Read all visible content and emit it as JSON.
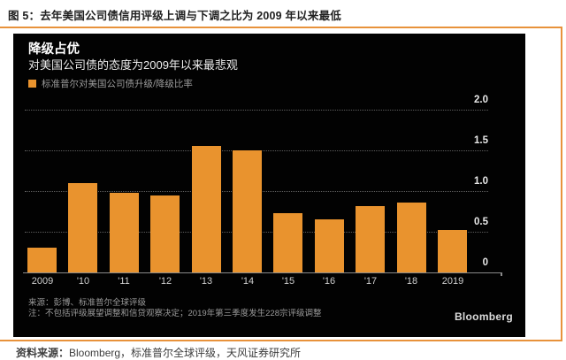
{
  "figure": {
    "title": "图 5：去年美国公司债信用评级上调与下调之比为 2009 年以来最低"
  },
  "chart": {
    "title": "降级占优",
    "subtitle": "对美国公司债的态度为2009年以来最悲观",
    "legend": "标准普尔对美国公司债升级/降级比率",
    "source_note": "来源：彭博、标准普尔全球评级",
    "footnote": "注：不包括评级展望调整和信贷观察决定；2019年第三季度发生228宗评级调整",
    "brand": "Bloomberg"
  },
  "chart_data": {
    "type": "bar",
    "title": "降级占优",
    "subtitle": "对美国公司债的态度为2009年以来最悲观",
    "legend_entries": [
      "标准普尔对美国公司债升级/降级比率"
    ],
    "categories": [
      "2009",
      "'10",
      "'11",
      "'12",
      "'13",
      "'14",
      "'15",
      "'16",
      "'17",
      "'18",
      "2019"
    ],
    "values": [
      0.3,
      1.1,
      0.98,
      0.95,
      1.55,
      1.5,
      0.73,
      0.65,
      0.82,
      0.86,
      0.52
    ],
    "ylim": [
      0,
      2.0
    ],
    "yticks": [
      0,
      0.5,
      1.0,
      1.5,
      2.0
    ],
    "ytick_labels": [
      "0",
      "0.5",
      "1.0",
      "1.5",
      "2.0"
    ],
    "ytick_side": "right",
    "grid": "dotted-horizontal",
    "bar_color": "#E9932E",
    "background": "#020202"
  },
  "footer": {
    "source_label": "资料来源：",
    "source_text": "Bloomberg，标准普尔全球评级，天风证券研究所"
  },
  "colors": {
    "accent_orange": "#E8923B",
    "bar_orange": "#E9932E",
    "panel_bg": "#020202"
  }
}
